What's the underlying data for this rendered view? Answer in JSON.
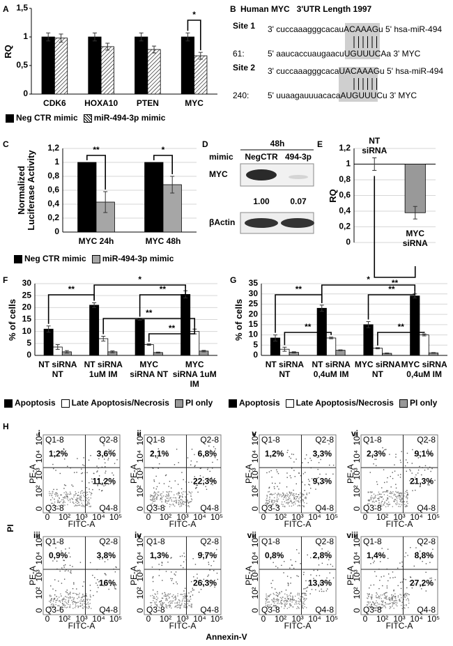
{
  "figure": {
    "panel_labels": [
      "A",
      "B",
      "C",
      "D",
      "E",
      "F",
      "G",
      "H"
    ]
  },
  "chart_data": [
    {
      "type": "bar",
      "y_label": "RQ",
      "categories": [
        "CDK6",
        "HOXA10",
        "PTEN",
        "MYC"
      ],
      "series": [
        {
          "name": "Neg CTR mimic",
          "color": "#000000",
          "values": [
            1,
            1,
            1,
            1
          ],
          "errors": [
            0.07,
            0.07,
            0.07,
            0.07
          ]
        },
        {
          "name": "miR-494-3p mimic",
          "color": "#ffffff",
          "hatch": true,
          "values": [
            0.98,
            0.83,
            0.78,
            0.67
          ],
          "errors": [
            0.07,
            0.06,
            0.06,
            0.06
          ]
        }
      ],
      "ylim": [
        0,
        1.5
      ],
      "yticks": [
        0,
        {
          "value": 0.5,
          "label": "0,5"
        },
        1,
        {
          "value": 1.5,
          "label": "1,5"
        }
      ],
      "grid": false,
      "annotations": [
        "*"
      ]
    },
    {
      "type": "bar",
      "y_label": "Normalized Luciferase Activity",
      "categories": [
        "MYC 24h",
        "MYC 48h"
      ],
      "series": [
        {
          "name": "Neg CTR mimic",
          "color": "#000000",
          "values": [
            1,
            1
          ]
        },
        {
          "name": "miR-494-3p mimic",
          "color": "#a6a6a6",
          "values": [
            0.43,
            0.68
          ],
          "errors": [
            0.15,
            0.12
          ]
        }
      ],
      "ylim": [
        0,
        1.2
      ],
      "yticks": [
        0,
        {
          "value": 0.2,
          "label": "0,2"
        },
        {
          "value": 0.4,
          "label": "0,4"
        },
        {
          "value": 0.6,
          "label": "0,6"
        },
        {
          "value": 0.8,
          "label": "0,8"
        },
        1,
        {
          "value": 1.2,
          "label": "1,2"
        }
      ],
      "grid": true,
      "annotations": [
        "**",
        "*"
      ]
    },
    {
      "type": "bar",
      "y_label": "RQ",
      "categories": [
        "NT siRNA",
        "MYC siRNA"
      ],
      "series": [
        {
          "colors": [
            "#ffffff",
            "#999999"
          ],
          "values": [
            1,
            0.38
          ],
          "errors": [
            0.08,
            0.08
          ]
        }
      ],
      "baseline": 1,
      "ylim": [
        0,
        1.2
      ],
      "yticks": [
        0,
        {
          "value": 0.2,
          "label": "0,2"
        },
        {
          "value": 0.4,
          "label": "0,4"
        },
        {
          "value": 0.6,
          "label": "0,6"
        },
        {
          "value": 0.8,
          "label": "0,8"
        },
        1,
        {
          "value": 1.2,
          "label": "1,2"
        }
      ],
      "grid": true,
      "annotations": [
        "**"
      ]
    },
    {
      "type": "bar",
      "y_label": "% of cells",
      "categories": [
        "NT siRNA NT",
        "NT siRNA 1uM IM",
        "MYC siRNA NT",
        "MYC siRNA 1uM IM"
      ],
      "series": [
        {
          "name": "Apoptosis",
          "color": "#000000",
          "values": [
            11,
            21,
            15,
            25.5
          ],
          "errors": [
            1.3,
            1,
            0.3,
            1.5
          ]
        },
        {
          "name": "Late Apoptosis/Necrosis",
          "color": "#ffffff",
          "values": [
            3.5,
            7,
            4.5,
            10
          ],
          "errors": [
            1,
            1,
            0.3,
            1
          ]
        },
        {
          "name": "PI only",
          "color": "#999999",
          "values": [
            1.5,
            1.5,
            1.2,
            1.8
          ],
          "errors": [
            0.5,
            0.4,
            0.2,
            0.3
          ]
        }
      ],
      "ylim": [
        0,
        30
      ],
      "yticks": [
        0,
        5,
        10,
        15,
        20,
        25,
        30
      ],
      "grid": true,
      "annotations": [
        "**",
        "*",
        "**",
        "**",
        "**"
      ]
    },
    {
      "type": "bar",
      "y_label": "% of cells",
      "categories": [
        "NT siRNA NT",
        "NT siRNA 0,4uM IM",
        "MYC siRNA NT",
        "MYC siRNA 0,4uM IM"
      ],
      "series": [
        {
          "name": "Apoptosis",
          "color": "#000000",
          "values": [
            8.5,
            23,
            15,
            29
          ],
          "errors": [
            1.5,
            1.5,
            1.5,
            1
          ]
        },
        {
          "name": "Late Apoptosis/Necrosis",
          "color": "#ffffff",
          "values": [
            3,
            8.5,
            3.5,
            10
          ],
          "errors": [
            1,
            0.4,
            0.3,
            0.5
          ]
        },
        {
          "name": "PI only",
          "color": "#999999",
          "values": [
            1.5,
            2.5,
            1,
            1.2
          ],
          "errors": [
            0.3,
            0.2,
            0.2,
            0.2
          ]
        }
      ],
      "ylim": [
        0,
        35
      ],
      "yticks": [
        0,
        5,
        10,
        15,
        20,
        25,
        30,
        35
      ],
      "grid": true,
      "annotations": [
        "**",
        "*",
        "**",
        "**",
        "**"
      ]
    }
  ],
  "panel_b": {
    "title": "Human MYC   3'UTR Length 1997",
    "sites": [
      {
        "label": "Site 1",
        "mirna": "3' cuccaaagggcacauACAAAGu 5' hsa-miR-494",
        "position": "61:",
        "target": "5' aaucaccuaugaacuUGUUUCAa 3' MYC"
      },
      {
        "label": "Site 2",
        "mirna": "3' cuccaaagggcacaUACAAAGu 5' hsa-miR-494",
        "position": "240:",
        "target": "5' uuaagauuuacacaAUGUUUCu 3' MYC"
      }
    ]
  },
  "panel_d": {
    "time": "48h",
    "row_label": "mimic",
    "lanes": [
      "NegCTR",
      "494-3p"
    ],
    "proteins": [
      "MYC",
      "βActin"
    ],
    "quantification": [
      "1.00",
      "0.07"
    ]
  },
  "panel_h": {
    "y_label": "PI",
    "x_label": "Annexin-V",
    "axis_x": "FITC-A",
    "axis_y": "PE-A",
    "tick_labels": [
      "0",
      "10²",
      "10³",
      "10⁴",
      "10⁵"
    ],
    "plots": [
      {
        "label": "i",
        "gates": [
          "Q1-8",
          "Q2-8",
          "Q3-8",
          "Q4-8"
        ],
        "q1": "1,2%",
        "q2": "3,6%",
        "q4": "11,2%"
      },
      {
        "label": "ii",
        "gates": [
          "Q1-8",
          "Q2-8",
          "Q3-8",
          "Q4-8"
        ],
        "q1": "2,1%",
        "q2": "6,8%",
        "q4": "22,3%"
      },
      {
        "label": "iii",
        "gates": [
          "Q1-8",
          "Q2-8",
          "Q3-6",
          "Q4-8"
        ],
        "q1": "0,9%",
        "q2": "3,8%",
        "q4": "16%"
      },
      {
        "label": "iv",
        "gates": [
          "Q1-8",
          "Q2-8",
          "Q3-8",
          "Q4-8"
        ],
        "q1": "1,3%",
        "q2": "9,7%",
        "q4": "26,3%"
      },
      {
        "label": "v",
        "gates": [
          "Q1-8",
          "Q2-8",
          "Q3-3",
          "Q4-8"
        ],
        "q1": "1,2%",
        "q2": "3,3%",
        "q4": "9,3%"
      },
      {
        "label": "vi",
        "gates": [
          "Q1-8",
          "Q2-8",
          "Q3-8",
          "Q4-8"
        ],
        "q1": "2,3%",
        "q2": "9,1%",
        "q4": "21,3%"
      },
      {
        "label": "vii",
        "gates": [
          "Q1-8",
          "Q2-8",
          "Q3-8",
          "Q4-8"
        ],
        "q1": "0,8%",
        "q2": "2,8%",
        "q4": "13,3%"
      },
      {
        "label": "viii",
        "gates": [
          "Q1-8",
          "Q2-8",
          "Q3-8",
          "Q4-8"
        ],
        "q1": "1,4%",
        "q2": "8,8%",
        "q4": "27,2%"
      }
    ]
  }
}
